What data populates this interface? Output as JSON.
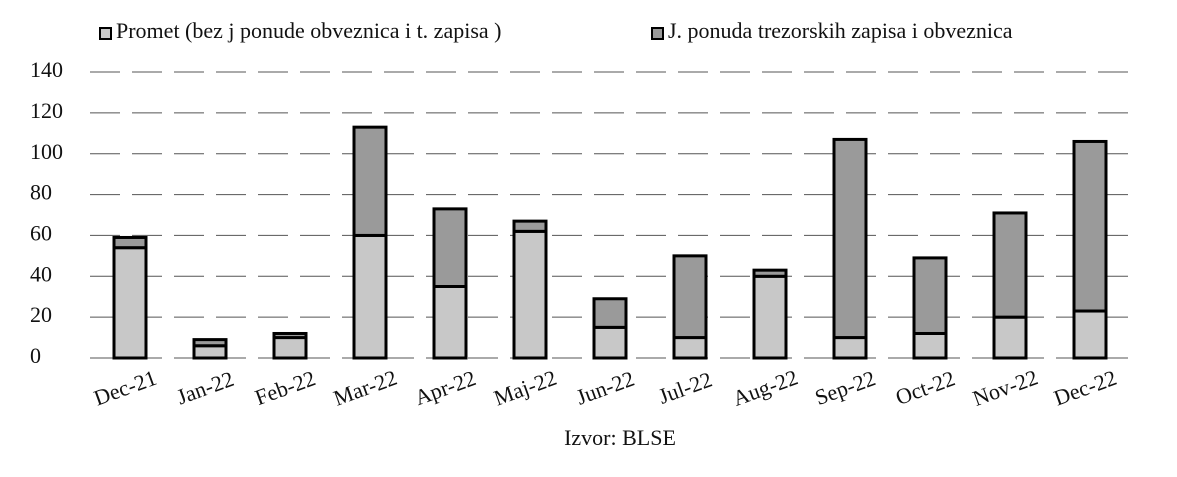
{
  "chart_data": {
    "type": "stacked_bar",
    "categories": [
      "Dec-21",
      "Jan-22",
      "Feb-22",
      "Mar-22",
      "Apr-22",
      "Maj-22",
      "Jun-22",
      "Jul-22",
      "Aug-22",
      "Sep-22",
      "Oct-22",
      "Nov-22",
      "Dec-22"
    ],
    "series": [
      {
        "name": "Promet (bez j ponude obveznica i t. zapisa )",
        "color": "#c8c8c8",
        "values": [
          54,
          6,
          10,
          60,
          35,
          62,
          15,
          10,
          40,
          10,
          12,
          20,
          23
        ]
      },
      {
        "name": "J. ponuda  trezorskih zapisa i obveznica",
        "color": "#9a9a9a",
        "values": [
          5,
          3,
          2,
          53,
          38,
          5,
          14,
          40,
          3,
          97,
          37,
          51,
          83
        ]
      }
    ],
    "ylim": [
      0,
      140
    ],
    "yticks": [
      0,
      20,
      40,
      60,
      80,
      100,
      120,
      140
    ],
    "grid": true,
    "source": "Izvor: BLSE"
  }
}
